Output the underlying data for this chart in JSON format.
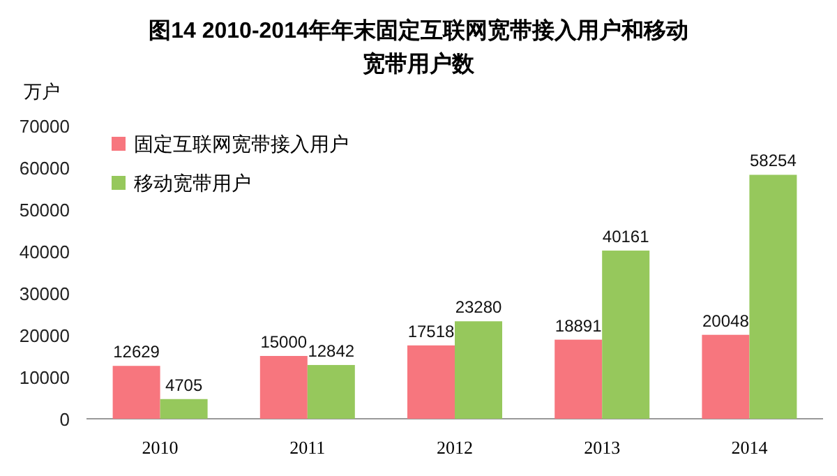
{
  "chart_data": {
    "type": "bar",
    "title": "图14  2010-2014年年末固定互联网宽带接入用户和移动宽带用户数",
    "ylabel": "万户",
    "categories": [
      "2010",
      "2011",
      "2012",
      "2013",
      "2014"
    ],
    "series": [
      {
        "name": "固定互联网宽带接入用户",
        "color": "#f7767e",
        "values": [
          12629,
          15000,
          17518,
          18891,
          20048
        ]
      },
      {
        "name": "移动宽带用户",
        "color": "#96c85c",
        "values": [
          4705,
          12842,
          23280,
          40161,
          58254
        ]
      }
    ],
    "ylim": [
      0,
      70000
    ],
    "yticks": [
      0,
      10000,
      20000,
      30000,
      40000,
      50000,
      60000,
      70000
    ],
    "data_labels": true,
    "legend": "top left"
  }
}
